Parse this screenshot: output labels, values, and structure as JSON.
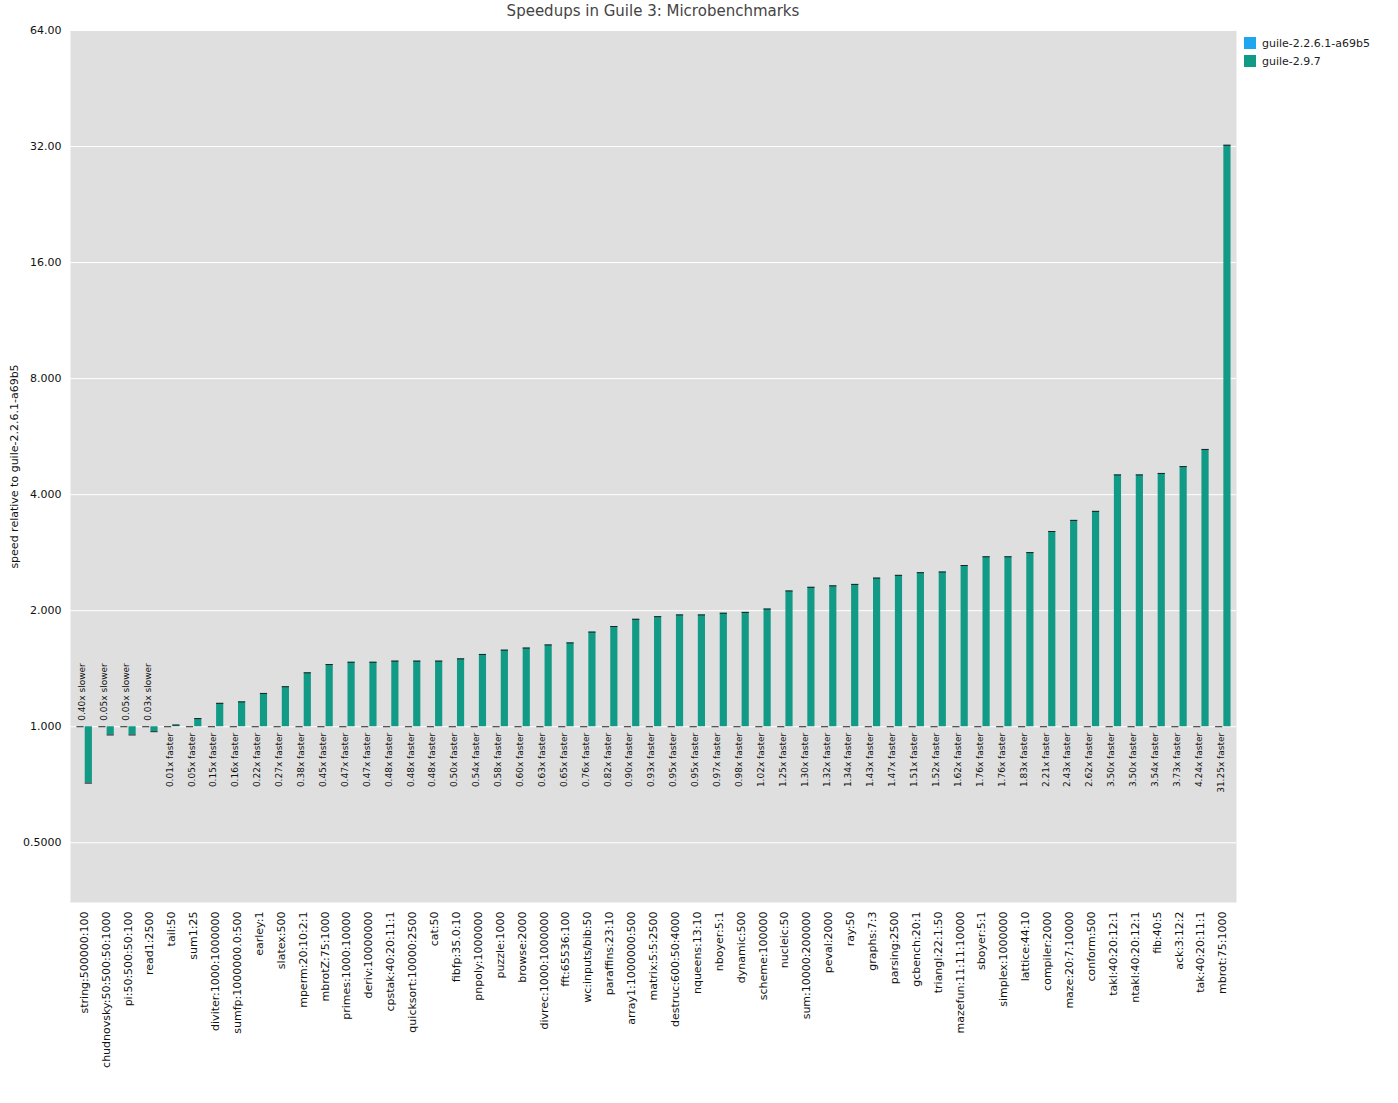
{
  "chart_data": {
    "type": "bar",
    "title": "Speedups in Guile 3: Microbenchmarks",
    "y_label": "speed relative to guile-2.2.6.1-a69b5",
    "categories": [
      "string:500000:100",
      "chudnovsky:50:500:50:1000",
      "pi:50:500:50:100",
      "read1:2500",
      "tail:50",
      "sum1:25",
      "diviter:1000:1000000",
      "sumfp:1000000.0:500",
      "earley:1",
      "slatex:500",
      "mperm:20:10:2:1",
      "mbrotZ:75:1000",
      "primes:1000:10000",
      "deriv:10000000",
      "cpstak:40:20:11:1",
      "quicksort:10000:2500",
      "cat:50",
      "fibfp:35.0:10",
      "pnpoly:1000000",
      "puzzle:1000",
      "browse:2000",
      "divrec:1000:1000000",
      "fft:65536:100",
      "wc:inputs/bib:50",
      "paraffins:23:10",
      "array1:1000000:500",
      "matrix:5:5:2500",
      "destruc:600:50:4000",
      "nqueens:13:10",
      "nboyer:5:1",
      "dynamic:500",
      "scheme:100000",
      "nucleic:50",
      "sum:10000:200000",
      "peval:2000",
      "ray:50",
      "graphs:7:3",
      "parsing:2500",
      "gcbench:20:1",
      "triangl:22:1:50",
      "mazefun:11:11:10000",
      "sboyer:5:1",
      "simplex:1000000",
      "lattice:44:10",
      "compiler:2000",
      "maze:20:7:10000",
      "conform:500",
      "takl:40:20:12:1",
      "ntakl:40:20:12:1",
      "fib:40:5",
      "ack:3:12:2",
      "tak:40:20:11:1",
      "mbrot:75:1000"
    ],
    "series": [
      {
        "name": "guile-2.2.6.1-a69b5",
        "color": "#1ea7ee",
        "values": [
          1,
          1,
          1,
          1,
          1,
          1,
          1,
          1,
          1,
          1,
          1,
          1,
          1,
          1,
          1,
          1,
          1,
          1,
          1,
          1,
          1,
          1,
          1,
          1,
          1,
          1,
          1,
          1,
          1,
          1,
          1,
          1,
          1,
          1,
          1,
          1,
          1,
          1,
          1,
          1,
          1,
          1,
          1,
          1,
          1,
          1,
          1,
          1,
          1,
          1,
          1,
          1,
          1
        ]
      },
      {
        "name": "guile-2.9.7",
        "color": "#119a85",
        "values": [
          0.714,
          0.952,
          0.952,
          0.971,
          1.01,
          1.05,
          1.15,
          1.16,
          1.22,
          1.27,
          1.38,
          1.45,
          1.47,
          1.47,
          1.48,
          1.48,
          1.48,
          1.5,
          1.54,
          1.58,
          1.6,
          1.63,
          1.65,
          1.76,
          1.82,
          1.9,
          1.93,
          1.95,
          1.95,
          1.97,
          1.98,
          2.02,
          2.25,
          2.3,
          2.32,
          2.34,
          2.43,
          2.47,
          2.51,
          2.52,
          2.62,
          2.76,
          2.76,
          2.83,
          3.21,
          3.43,
          3.62,
          4.5,
          4.5,
          4.54,
          4.73,
          5.24,
          32.25
        ],
        "value_labels": [
          "0.40x slower",
          "0.05x slower",
          "0.05x slower",
          "0.03x slower",
          "0.01x faster",
          "0.05x faster",
          "0.15x faster",
          "0.16x faster",
          "0.22x faster",
          "0.27x faster",
          "0.38x faster",
          "0.45x faster",
          "0.47x faster",
          "0.47x faster",
          "0.48x faster",
          "0.48x faster",
          "0.48x faster",
          "0.50x faster",
          "0.54x faster",
          "0.58x faster",
          "0.60x faster",
          "0.63x faster",
          "0.65x faster",
          "0.76x faster",
          "0.82x faster",
          "0.90x faster",
          "0.93x faster",
          "0.95x faster",
          "0.95x faster",
          "0.97x faster",
          "0.98x faster",
          "1.02x faster",
          "1.25x faster",
          "1.30x faster",
          "1.32x faster",
          "1.34x faster",
          "1.43x faster",
          "1.47x faster",
          "1.51x faster",
          "1.52x faster",
          "1.62x faster",
          "1.76x faster",
          "1.76x faster",
          "1.83x faster",
          "2.21x faster",
          "2.43x faster",
          "2.62x faster",
          "3.50x faster",
          "3.50x faster",
          "3.54x faster",
          "3.73x faster",
          "4.24x faster",
          "31.25x faster"
        ]
      }
    ],
    "ylim": [
      0.35,
      64
    ],
    "yticks": [
      {
        "value": 0.5,
        "label": "0.5000"
      },
      {
        "value": 1,
        "label": "1.000"
      },
      {
        "value": 2,
        "label": "2.000"
      },
      {
        "value": 4,
        "label": "4.000"
      },
      {
        "value": 8,
        "label": "8.000"
      },
      {
        "value": 16,
        "label": "16.00"
      },
      {
        "value": 32,
        "label": "32.00"
      },
      {
        "value": 64,
        "label": "64.00"
      }
    ],
    "log": "y",
    "grid": true,
    "legend": "top right",
    "data_labels": true
  }
}
